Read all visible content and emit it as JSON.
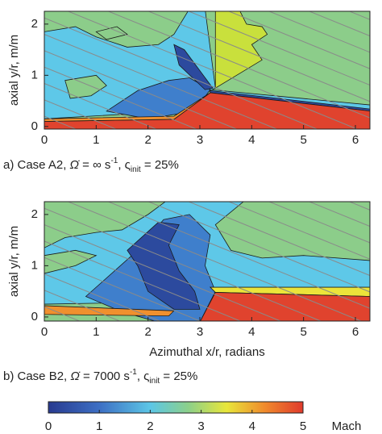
{
  "chart_data": [
    {
      "type": "contour",
      "ylabel": "axial y/r, m/m",
      "xlim": [
        0,
        6.28
      ],
      "ylim": [
        -0.05,
        2.25
      ],
      "xticks": [
        0,
        1,
        2,
        3,
        4,
        5,
        6
      ],
      "yticks": [
        0,
        1,
        2
      ],
      "caption": {
        "label": "a) Case A2, ",
        "symbol": "Ω̇",
        "rate": " = ∞ s",
        "rate_exp": "-1",
        "param": ", ς",
        "param_sub": "init",
        "param_value": " = 25%"
      }
    },
    {
      "type": "contour",
      "ylabel": "axial y/r, m/m",
      "xlabel": "Azimuthal x/r, radians",
      "xlim": [
        0,
        6.28
      ],
      "ylim": [
        -0.08,
        2.25
      ],
      "xticks": [
        0,
        1,
        2,
        3,
        4,
        5,
        6
      ],
      "yticks": [
        0,
        1,
        2
      ],
      "caption": {
        "label": "b) Case B2, ",
        "symbol": "Ω̇",
        "rate": " = 7000 s",
        "rate_exp": "-1",
        "param": ", ς",
        "param_sub": "init",
        "param_value": " = 25%"
      }
    },
    {
      "type": "colorbar",
      "lim": [
        0,
        5
      ],
      "ticks": [
        0,
        1,
        2,
        3,
        4,
        5
      ],
      "label": "Mach"
    }
  ]
}
